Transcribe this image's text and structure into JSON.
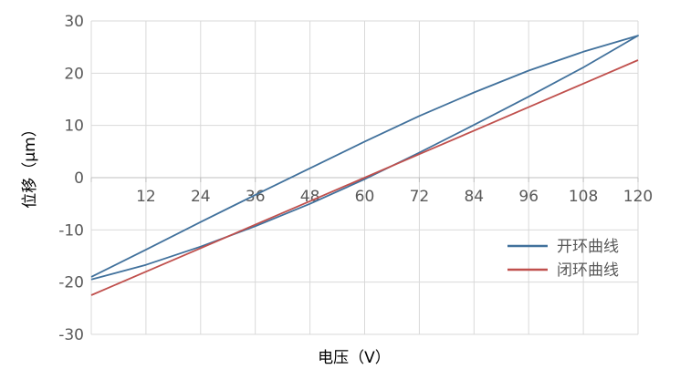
{
  "chart_data": {
    "type": "line",
    "xlabel": "电压（V）",
    "ylabel": "位移（μm）",
    "xlim": [
      0,
      120
    ],
    "ylim": [
      -30,
      30
    ],
    "x_ticks": [
      "12",
      "24",
      "36",
      "48",
      "60",
      "72",
      "84",
      "96",
      "108",
      "120"
    ],
    "y_ticks": [
      "-30",
      "-20",
      "-10",
      "0",
      "10",
      "20",
      "30"
    ],
    "grid": true,
    "legend_position": "bottom-right",
    "series": [
      {
        "name": "开环曲线",
        "color": "#41719C",
        "x": [
          0,
          12,
          24,
          36,
          48,
          60,
          72,
          84,
          96,
          108,
          120,
          108,
          96,
          84,
          72,
          60,
          48,
          36,
          24,
          12,
          0
        ],
        "y": [
          -19.5,
          -16.7,
          -13.2,
          -9.3,
          -5.0,
          -0.3,
          4.8,
          10.1,
          15.5,
          21.1,
          27.2,
          24.1,
          20.5,
          16.3,
          11.8,
          6.9,
          1.8,
          -3.3,
          -8.5,
          -13.8,
          -19.0
        ]
      },
      {
        "name": "闭环曲线",
        "color": "#C0504D",
        "x": [
          0,
          12,
          24,
          36,
          48,
          60,
          72,
          84,
          96,
          108,
          120
        ],
        "y": [
          -22.5,
          -18.0,
          -13.5,
          -9.0,
          -4.5,
          0.0,
          4.5,
          9.0,
          13.5,
          18.0,
          22.5
        ]
      }
    ]
  }
}
